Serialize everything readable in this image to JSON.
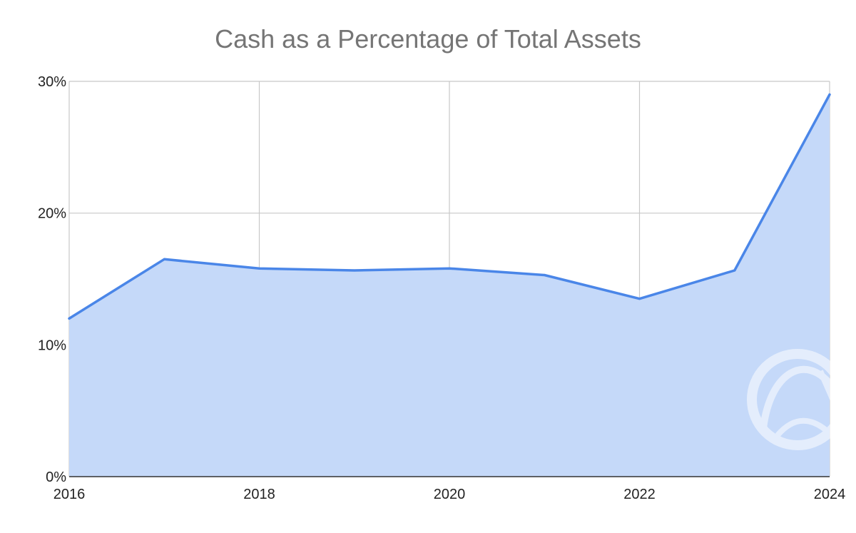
{
  "chart_data": {
    "type": "area",
    "title": "Cash as a Percentage of Total Assets",
    "xlabel": "",
    "ylabel": "",
    "x": [
      2016,
      2017,
      2018,
      2019,
      2020,
      2021,
      2022,
      2023,
      2024
    ],
    "x_ticks": [
      "2016",
      "2018",
      "2020",
      "2022",
      "2024"
    ],
    "x_tick_values": [
      2016,
      2018,
      2020,
      2022,
      2024
    ],
    "xlim": [
      2016,
      2024
    ],
    "y_ticks": [
      "0%",
      "10%",
      "20%",
      "30%"
    ],
    "y_tick_values": [
      0,
      10,
      20,
      30
    ],
    "ylim": [
      0,
      30
    ],
    "grid": true,
    "legend": "none",
    "series": [
      {
        "values": [
          12.0,
          16.5,
          15.8,
          15.65,
          15.8,
          15.3,
          13.5,
          15.65,
          29.0
        ],
        "line_color": "#4a86e8",
        "fill_color": "#c5d9f9"
      }
    ],
    "watermark_icon": "circular-logo-watermark"
  }
}
